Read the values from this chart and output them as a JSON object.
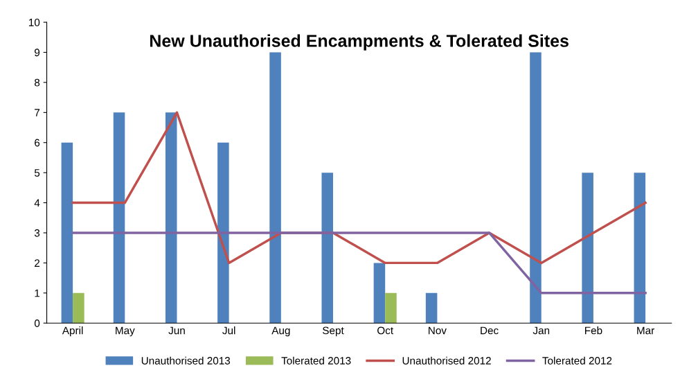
{
  "chart_data": {
    "type": "bar",
    "title": "New Unauthorised Encampments & Tolerated Sites",
    "categories": [
      "April",
      "May",
      "Jun",
      "Jul",
      "Aug",
      "Sept",
      "Oct",
      "Nov",
      "Dec",
      "Jan",
      "Feb",
      "Mar"
    ],
    "series": [
      {
        "name": "Unauthorised 2013",
        "color": "#4f81bd",
        "values": [
          6,
          7,
          7,
          6,
          9,
          5,
          2,
          1,
          0,
          9,
          5,
          5
        ]
      },
      {
        "name": "Tolerated 2013",
        "color": "#9bbb59",
        "values": [
          1,
          0,
          0,
          0,
          0,
          0,
          1,
          0,
          0,
          0,
          0,
          0
        ]
      },
      {
        "name": "Unauthorised 2012",
        "color": "#c0504d",
        "type": "line",
        "values": [
          4,
          4,
          7,
          2,
          3,
          3,
          2,
          2,
          3,
          2,
          3,
          4
        ]
      },
      {
        "name": "Tolerated 2012",
        "color": "#8064a2",
        "type": "line",
        "values": [
          3,
          3,
          3,
          3,
          3,
          3,
          3,
          3,
          3,
          1,
          1,
          1
        ]
      }
    ],
    "ylim": [
      0,
      10
    ],
    "yticks": [
      0,
      1,
      2,
      3,
      4,
      5,
      6,
      7,
      8,
      9,
      10
    ],
    "grid": false,
    "legend": "bottom",
    "marker": "none",
    "line_style": "solid"
  }
}
